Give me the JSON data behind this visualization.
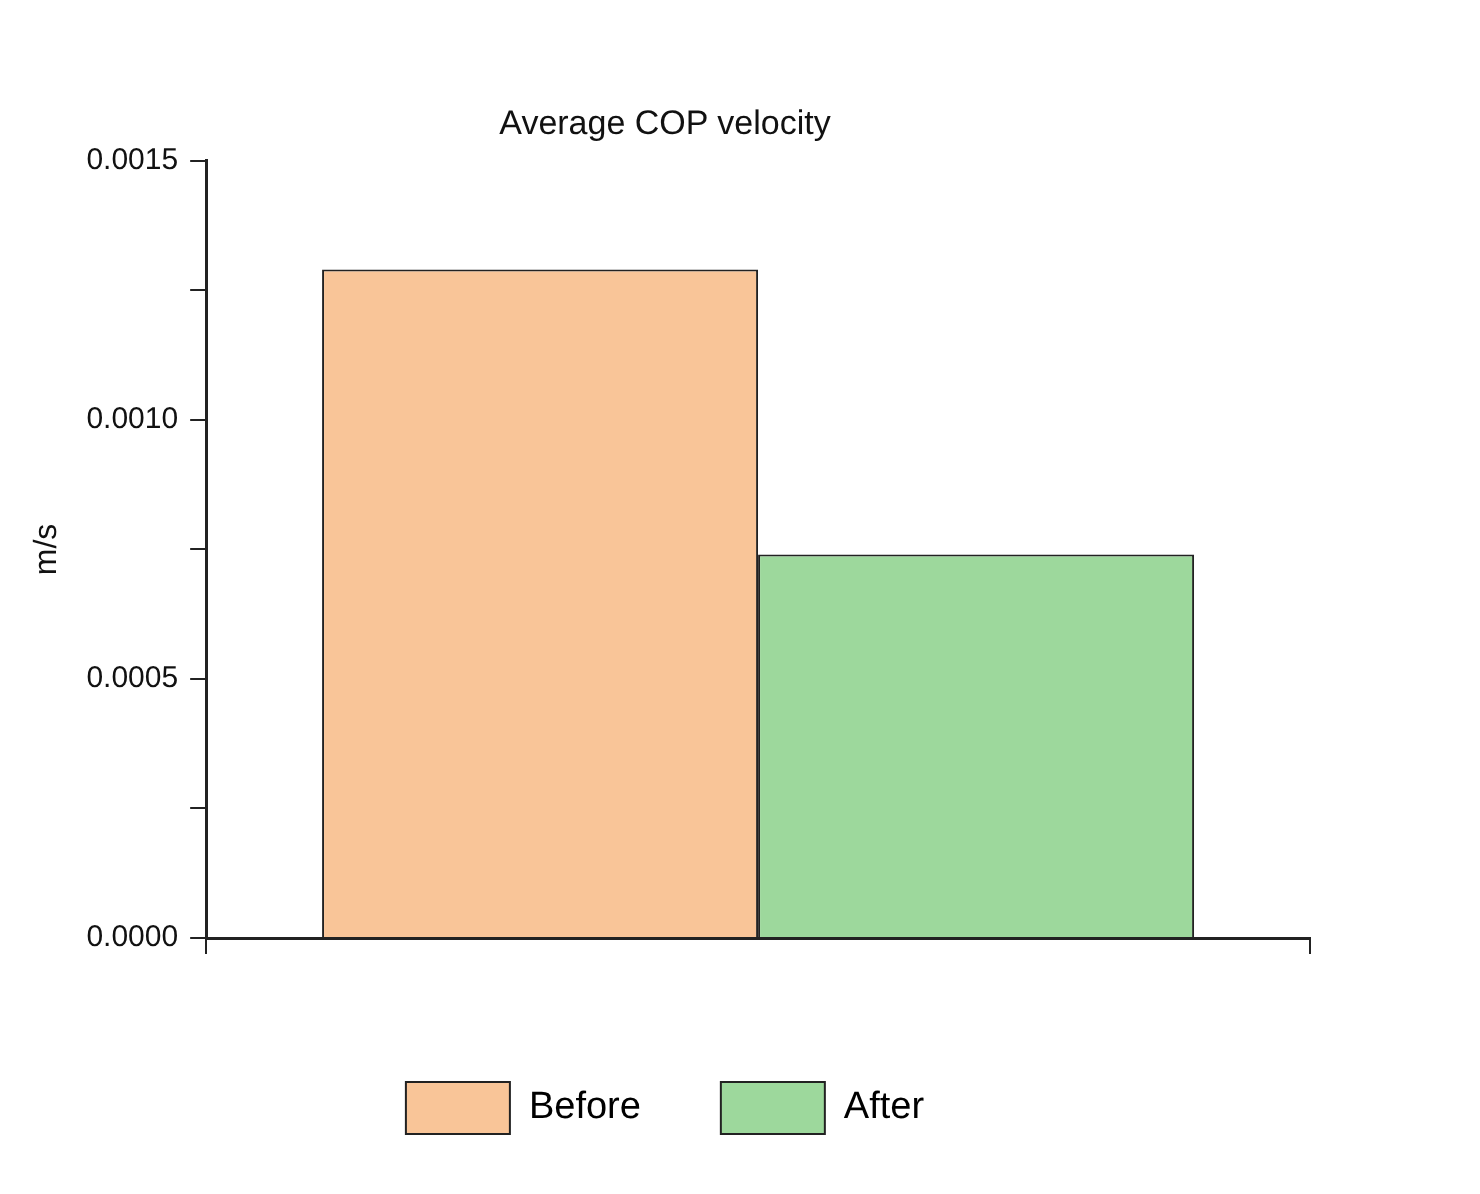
{
  "chart_data": {
    "type": "bar",
    "title": "Average COP velocity",
    "ylabel": "m/s",
    "categories": [
      null
    ],
    "series": [
      {
        "name": "Before",
        "color": "#f9c598",
        "values": [
          0.00129
        ]
      },
      {
        "name": "After",
        "color": "#9dd89c",
        "values": [
          0.00074
        ]
      }
    ],
    "ylim": [
      0,
      0.0015
    ],
    "yticks": [
      {
        "value": 0,
        "label": "0.0000"
      },
      {
        "value": 0.00025,
        "label": null
      },
      {
        "value": 0.0005,
        "label": "0.0005"
      },
      {
        "value": 0.00075,
        "label": null
      },
      {
        "value": 0.001,
        "label": "0.0010"
      },
      {
        "value": 0.00125,
        "label": null
      },
      {
        "value": 0.0015,
        "label": "0.0015"
      }
    ],
    "grid": false,
    "legend": "bottom"
  }
}
